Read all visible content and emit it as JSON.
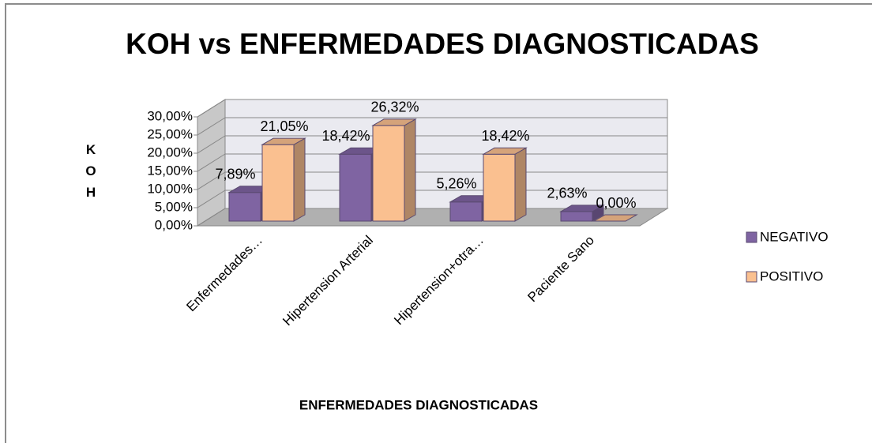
{
  "chart_data": {
    "type": "bar3d",
    "title": "KOH vs ENFERMEDADES DIAGNOSTICADAS",
    "x_label": "ENFERMEDADES DIAGNOSTICADAS",
    "y_label": "KOH",
    "categories": [
      "Enfermedades…",
      "Hipertension Arterial",
      "Hipertension+otra…",
      "Paciente Sano"
    ],
    "series": [
      {
        "name": "NEGATIVO",
        "color": "#7f64a2",
        "values": [
          7.89,
          18.42,
          5.26,
          2.63
        ],
        "value_labels": [
          "7,89%",
          "18,42%",
          "5,26%",
          "2,63%"
        ]
      },
      {
        "name": "POSITIVO",
        "color": "#fac090",
        "values": [
          21.05,
          26.32,
          18.42,
          0
        ],
        "value_labels": [
          "21,05%",
          "26,32%",
          "18,42%",
          "0,00%"
        ]
      }
    ],
    "ylim": [
      0,
      30
    ],
    "yticks": [
      {
        "value": 0,
        "label": "0,00%"
      },
      {
        "value": 5,
        "label": "5,00%"
      },
      {
        "value": 10,
        "label": "10,00%"
      },
      {
        "value": 15,
        "label": "15,00%"
      },
      {
        "value": 20,
        "label": "20,00%"
      },
      {
        "value": 25,
        "label": "25,00%"
      },
      {
        "value": 30,
        "label": "30,00%"
      }
    ],
    "grid": true,
    "legend": "right"
  }
}
